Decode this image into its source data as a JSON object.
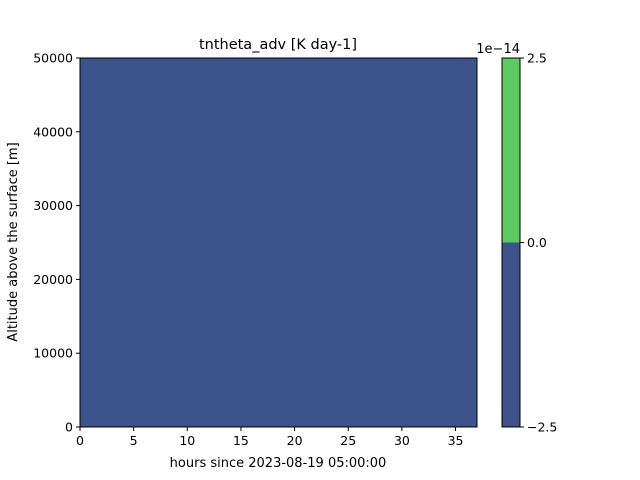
{
  "chart_data": {
    "type": "heatmap",
    "title": "tntheta_adv [K day-1]",
    "xlabel": "hours since 2023-08-19 05:00:00",
    "ylabel": "Altitude above the surface [m]",
    "xlim": [
      0,
      37
    ],
    "ylim": [
      0,
      50000
    ],
    "x_ticks": [
      0,
      5,
      10,
      15,
      20,
      25,
      30,
      35
    ],
    "y_ticks": [
      0,
      10000,
      20000,
      30000,
      40000,
      50000
    ],
    "x_tick_labels": [
      "0",
      "5",
      "10",
      "15",
      "20",
      "25",
      "30",
      "35"
    ],
    "y_tick_labels": [
      "0",
      "10000",
      "20000",
      "30000",
      "40000",
      "50000"
    ],
    "field": {
      "description_value": "uniform field within the lower colour level",
      "level_index": 0
    },
    "colorbar": {
      "offset_label": "1e−14",
      "levels": [
        -2.5,
        0.0,
        2.5
      ],
      "level_labels": [
        "−2.5",
        "0.0",
        "2.5"
      ],
      "colors": [
        "#3b528b",
        "#5ec962"
      ]
    },
    "grid": false
  }
}
